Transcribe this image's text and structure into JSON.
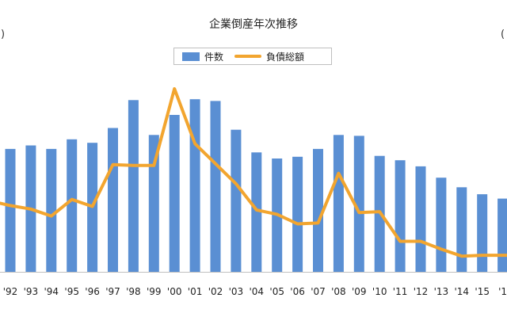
{
  "chart_data": {
    "type": "bar",
    "title": "企業倒産年次推移",
    "left_axis_fragment": ")",
    "right_axis_fragment": "(",
    "legend": [
      {
        "label": "件数",
        "kind": "bar",
        "color": "#5a8fd3"
      },
      {
        "label": "負債総額",
        "kind": "line",
        "color": "#f2a52f"
      }
    ],
    "categories": [
      "'92",
      "'93",
      "'94",
      "'95",
      "'96",
      "'97",
      "'98",
      "'99",
      "'00",
      "'01",
      "'02",
      "'03",
      "'04",
      "'05",
      "'06",
      "'07",
      "'08",
      "'09",
      "'10",
      "'11",
      "'12",
      "'13",
      "'14",
      "'15",
      "'1"
    ],
    "series": [
      {
        "name": "件数",
        "type": "bar",
        "values": [
          14.1,
          14.5,
          14.1,
          15.2,
          14.8,
          16.5,
          19.7,
          15.7,
          18.0,
          19.8,
          19.6,
          16.3,
          13.7,
          13.0,
          13.2,
          14.1,
          15.7,
          15.6,
          13.3,
          12.8,
          12.1,
          10.8,
          9.7,
          8.9,
          8.4
        ]
      },
      {
        "name": "負債総額",
        "type": "line",
        "values": [
          7.6,
          7.2,
          6.4,
          8.3,
          7.5,
          12.3,
          12.2,
          12.2,
          21.0,
          14.7,
          12.4,
          10.1,
          7.1,
          6.6,
          5.5,
          5.6,
          11.3,
          6.8,
          6.9,
          3.5,
          3.5,
          2.6,
          1.8,
          1.9,
          1.9
        ]
      }
    ],
    "ylim": [
      0,
      22
    ],
    "grid": false,
    "legend_placement": "top-center"
  }
}
